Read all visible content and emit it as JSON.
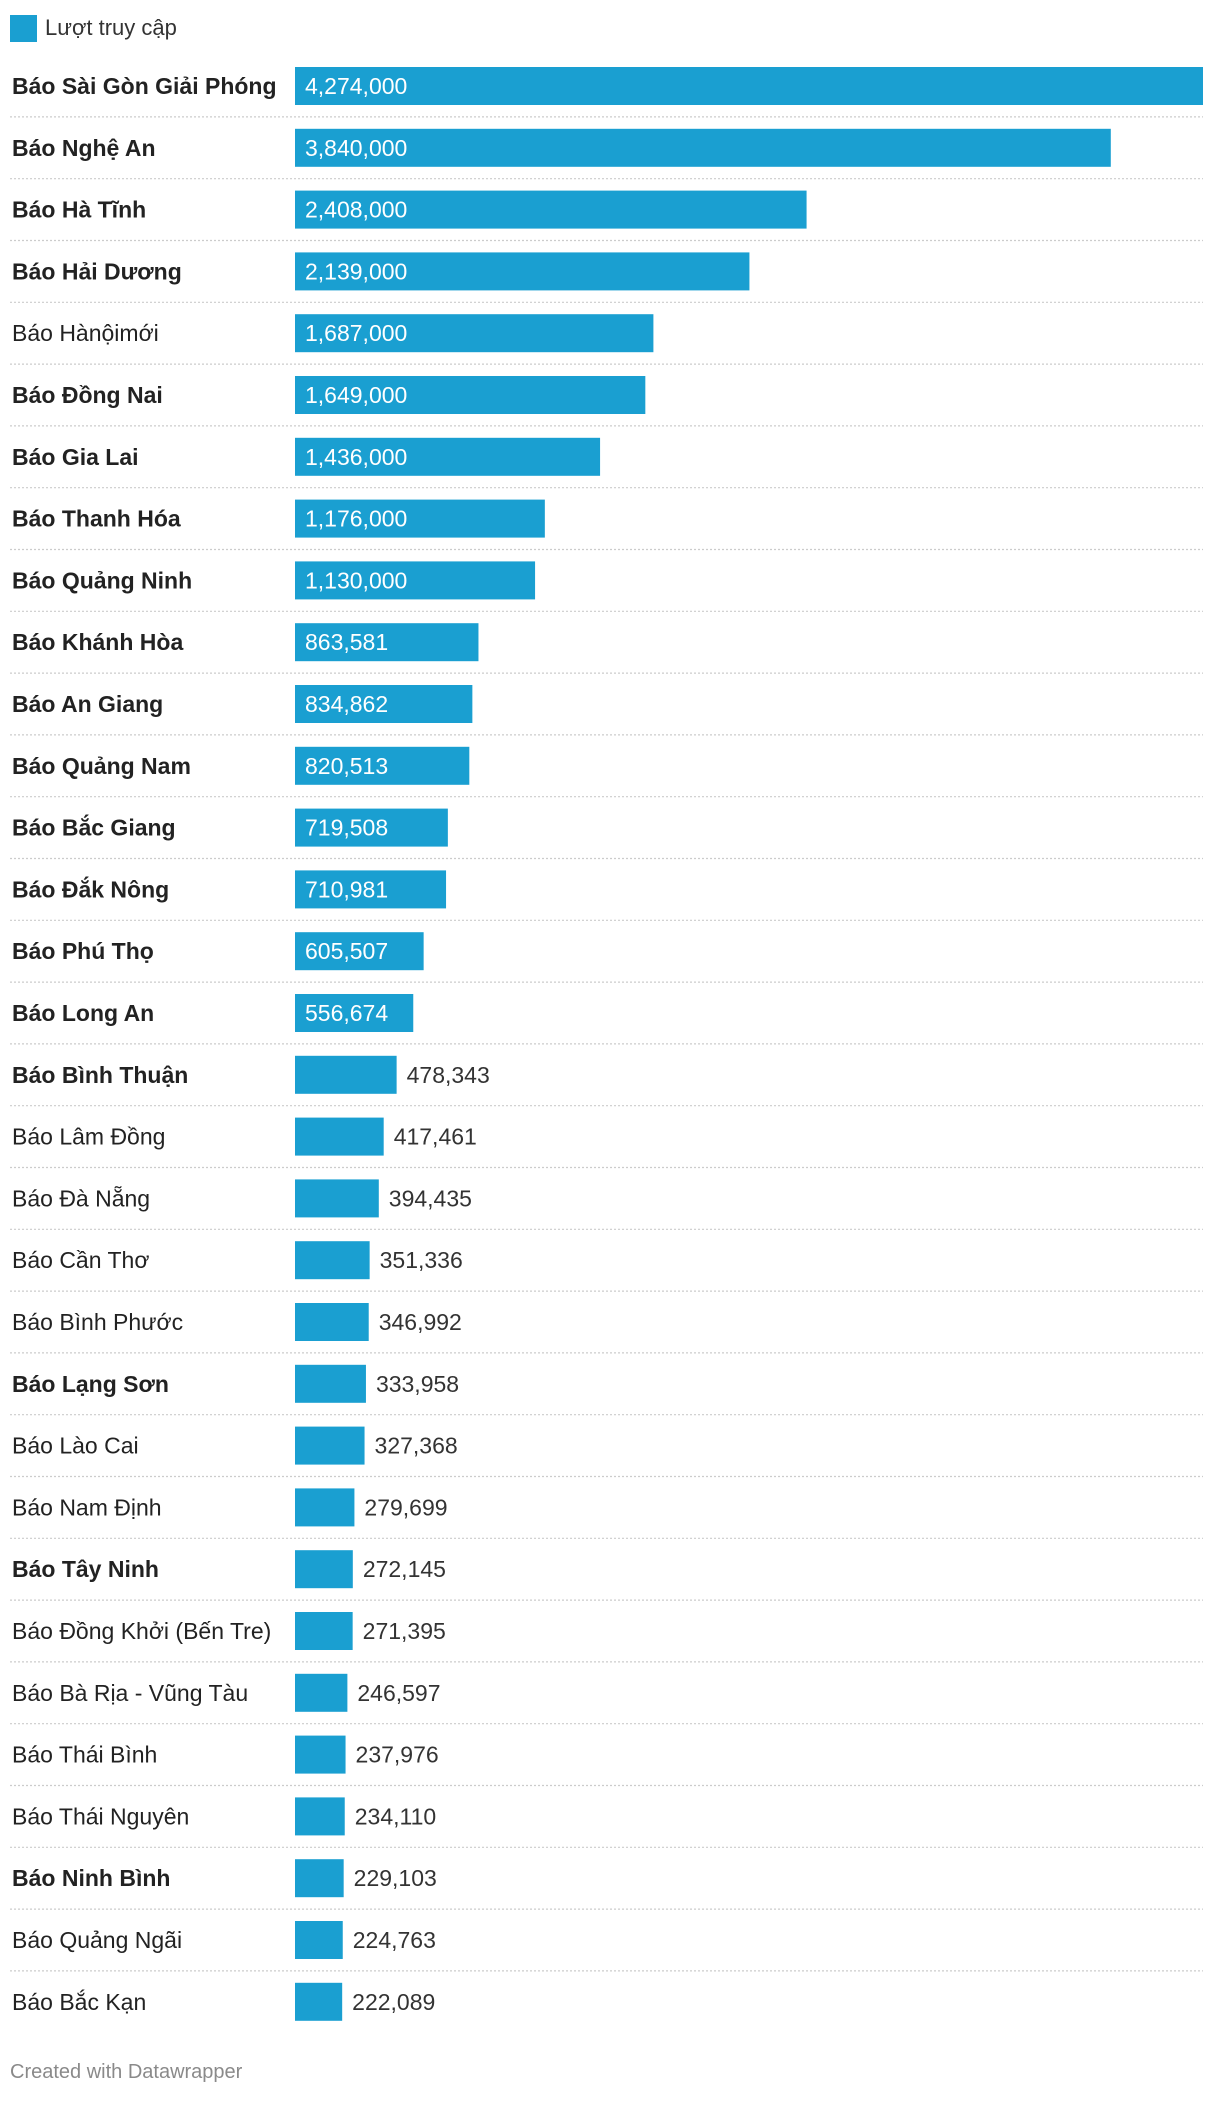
{
  "legend": {
    "label": "Lượt truy cập",
    "color": "#1a9fd1"
  },
  "credit": "Created with Datawrapper",
  "chart_data": {
    "type": "bar",
    "orientation": "horizontal",
    "series": [
      {
        "name": "Lượt truy cập"
      }
    ],
    "categories": [
      "Báo Sài Gòn Giải Phóng",
      "Báo Nghệ An",
      "Báo Hà Tĩnh",
      "Báo Hải Dương",
      "Báo Hànộimới",
      "Báo Đồng Nai",
      "Báo Gia Lai",
      "Báo Thanh Hóa",
      "Báo Quảng Ninh",
      "Báo Khánh Hòa",
      "Báo An Giang",
      "Báo Quảng Nam",
      "Báo Bắc Giang",
      "Báo Đắk Nông",
      "Báo Phú Thọ",
      "Báo Long An",
      "Báo Bình Thuận",
      "Báo Lâm Đồng",
      "Báo Đà Nẵng",
      "Báo Cần Thơ",
      "Báo Bình Phước",
      "Báo Lạng Sơn",
      "Báo Lào Cai",
      "Báo Nam Định",
      "Báo Tây Ninh",
      "Báo Đồng Khởi (Bến Tre)",
      "Báo Bà Rịa - Vũng Tàu",
      "Báo Thái Bình",
      "Báo Thái Nguyên",
      "Báo Ninh Bình",
      "Báo Quảng Ngãi",
      "Báo Bắc Kạn"
    ],
    "values": [
      4274000,
      3840000,
      2408000,
      2139000,
      1687000,
      1649000,
      1436000,
      1176000,
      1130000,
      863581,
      834862,
      820513,
      719508,
      710981,
      605507,
      556674,
      478343,
      417461,
      394435,
      351336,
      346992,
      333958,
      327368,
      279699,
      272145,
      271395,
      246597,
      237976,
      234110,
      229103,
      224763,
      222089
    ],
    "value_labels": [
      "4,274,000",
      "3,840,000",
      "2,408,000",
      "2,139,000",
      "1,687,000",
      "1,649,000",
      "1,436,000",
      "1,176,000",
      "1,130,000",
      "863,581",
      "834,862",
      "820,513",
      "719,508",
      "710,981",
      "605,507",
      "556,674",
      "478,343",
      "417,461",
      "394,435",
      "351,336",
      "346,992",
      "333,958",
      "327,368",
      "279,699",
      "272,145",
      "271,395",
      "246,597",
      "237,976",
      "234,110",
      "229,103",
      "224,763",
      "222,089"
    ],
    "bold_labels": [
      "Báo Sài Gòn Giải Phóng",
      "Báo Nghệ An",
      "Báo Hà Tĩnh",
      "Báo Hải Dương",
      "Báo Đồng Nai",
      "Báo Gia Lai",
      "Báo Thanh Hóa",
      "Báo Quảng Ninh",
      "Báo Khánh Hòa",
      "Báo An Giang",
      "Báo Quảng Nam",
      "Báo Bắc Giang",
      "Báo Đắk Nông",
      "Báo Phú Thọ",
      "Báo Long An",
      "Báo Bình Thuận",
      "Báo Lạng Sơn",
      "Báo Tây Ninh",
      "Báo Ninh Bình"
    ],
    "xlim": [
      0,
      4274000
    ],
    "grid": false,
    "legend_position": "top-left",
    "colors": {
      "bar": "#1a9fd1",
      "label_inside": "#ffffff",
      "label_outside": "#333333",
      "divider": "#cccccc"
    }
  }
}
